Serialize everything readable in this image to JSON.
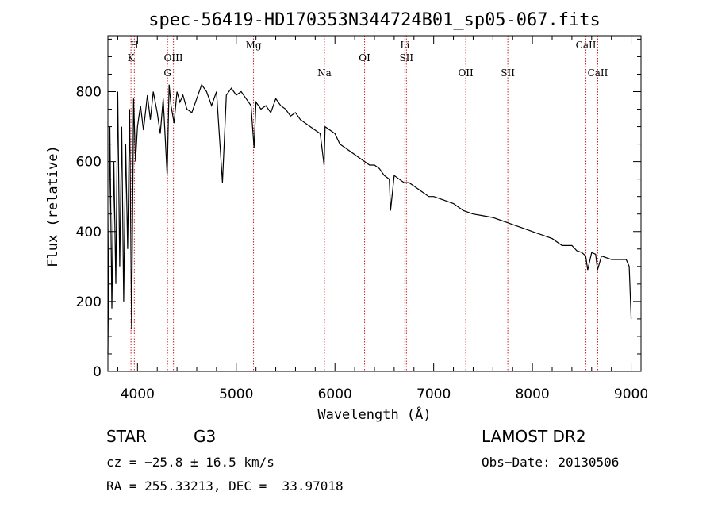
{
  "chart_data": {
    "type": "line",
    "title": "spec-56419-HD170353N344724B01_sp05-067.fits",
    "xlabel": "Wavelength (Å)",
    "ylabel": "Flux (relative)",
    "xlim": [
      3700,
      9100
    ],
    "ylim": [
      0,
      960
    ],
    "xticks": [
      4000,
      5000,
      6000,
      7000,
      8000,
      9000
    ],
    "yticks": [
      0,
      200,
      400,
      600,
      800
    ],
    "line_color": "#000000",
    "marker_color": "#cc2222",
    "series": [
      {
        "x": [
          3700,
          3720,
          3740,
          3760,
          3780,
          3800,
          3820,
          3840,
          3860,
          3880,
          3900,
          3920,
          3940,
          3960,
          3980,
          4000,
          4030,
          4060,
          4100,
          4130,
          4160,
          4200,
          4230,
          4260,
          4300,
          4320,
          4340,
          4370,
          4400,
          4430,
          4460,
          4500,
          4550,
          4600,
          4650,
          4700,
          4750,
          4800,
          4860,
          4900,
          4950,
          5000,
          5050,
          5100,
          5150,
          5180,
          5200,
          5250,
          5300,
          5350,
          5400,
          5450,
          5500,
          5550,
          5600,
          5650,
          5700,
          5750,
          5800,
          5850,
          5890,
          5900,
          5950,
          6000,
          6050,
          6100,
          6150,
          6200,
          6250,
          6300,
          6350,
          6400,
          6450,
          6500,
          6550,
          6563,
          6600,
          6650,
          6700,
          6750,
          6800,
          6850,
          6900,
          6950,
          7000,
          7100,
          7200,
          7300,
          7400,
          7500,
          7600,
          7700,
          7800,
          7900,
          8000,
          8100,
          8200,
          8300,
          8400,
          8450,
          8500,
          8540,
          8560,
          8600,
          8640,
          8660,
          8700,
          8750,
          8800,
          8850,
          8900,
          8950,
          8980,
          9000
        ],
        "values": [
          50,
          700,
          180,
          600,
          250,
          800,
          300,
          700,
          200,
          650,
          350,
          750,
          120,
          780,
          600,
          700,
          760,
          690,
          790,
          720,
          800,
          740,
          680,
          780,
          560,
          820,
          760,
          710,
          800,
          770,
          790,
          750,
          740,
          780,
          820,
          800,
          760,
          800,
          540,
          790,
          810,
          790,
          800,
          780,
          760,
          640,
          770,
          750,
          760,
          740,
          780,
          760,
          750,
          730,
          740,
          720,
          710,
          700,
          690,
          680,
          590,
          700,
          690,
          680,
          650,
          640,
          630,
          620,
          610,
          600,
          590,
          590,
          580,
          560,
          550,
          460,
          560,
          550,
          540,
          540,
          530,
          520,
          510,
          500,
          500,
          490,
          480,
          460,
          450,
          445,
          440,
          430,
          420,
          410,
          400,
          390,
          380,
          360,
          360,
          345,
          340,
          330,
          290,
          340,
          335,
          290,
          330,
          325,
          320,
          320,
          320,
          320,
          300,
          150
        ]
      }
    ],
    "line_markers": [
      {
        "wavelength": 3934,
        "labels": [
          "K"
        ],
        "level": 2
      },
      {
        "wavelength": 3968,
        "labels": [
          "H"
        ],
        "level": 1
      },
      {
        "wavelength": 4304,
        "labels": [
          "G"
        ],
        "level": 3
      },
      {
        "wavelength": 4364,
        "labels": [
          "OIII"
        ],
        "level": 2
      },
      {
        "wavelength": 5175,
        "labels": [
          "Mg"
        ],
        "level": 1
      },
      {
        "wavelength": 5893,
        "labels": [
          "Na"
        ],
        "level": 3
      },
      {
        "wavelength": 6300,
        "labels": [
          "OI"
        ],
        "level": 2
      },
      {
        "wavelength": 6708,
        "labels": [
          "Li"
        ],
        "level": 1
      },
      {
        "wavelength": 6724,
        "labels": [
          "SII"
        ],
        "level": 2
      },
      {
        "wavelength": 7325,
        "labels": [
          "OII"
        ],
        "level": 3
      },
      {
        "wavelength": 7751,
        "labels": [
          "SII"
        ],
        "level": 3
      },
      {
        "wavelength": 8542,
        "labels": [
          "CaII"
        ],
        "level": 1
      },
      {
        "wavelength": 8662,
        "labels": [
          "CaII"
        ],
        "level": 3
      }
    ]
  },
  "info": {
    "object": "STAR",
    "subclass": "G3",
    "survey": "LAMOST DR2",
    "cz": "cz = −25.8 ± 16.5 km/s",
    "obs_date": "Obs−Date: 20130506",
    "radec": "RA = 255.33213, DEC =  33.97018"
  }
}
